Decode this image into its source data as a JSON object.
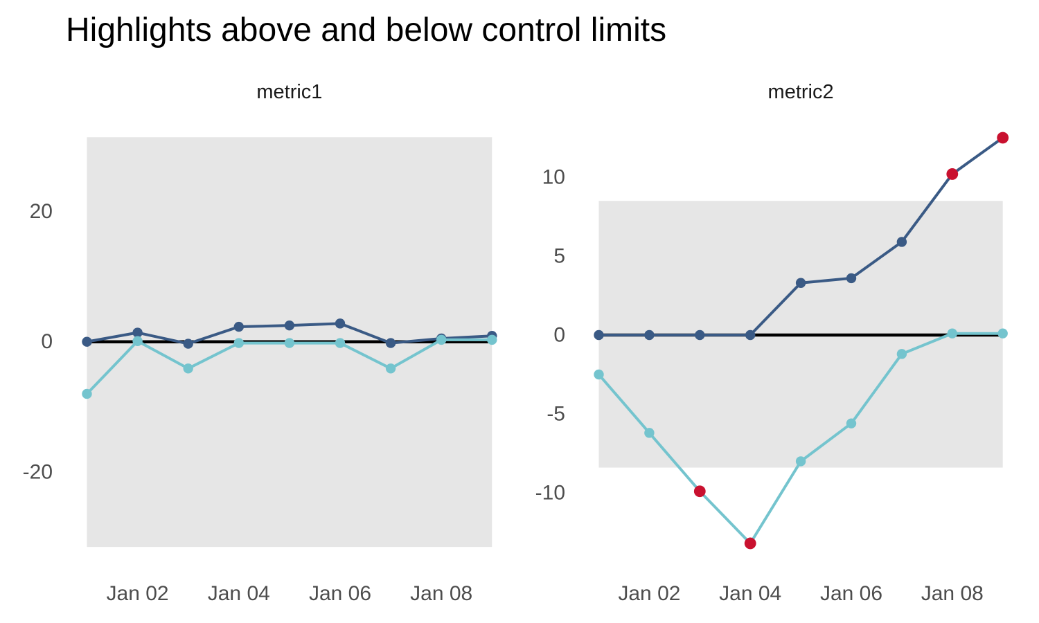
{
  "title": "Highlights above and below control limits",
  "colors": {
    "navy": "#3a5a85",
    "teal": "#74c4ce",
    "red": "#c9112f",
    "band": "#e6e6e6",
    "center_line": "#000000",
    "tick_label": "#4d4d4d",
    "facet_label": "#1a1a1a",
    "title": "#000000",
    "background": "#ffffff"
  },
  "chart_data": [
    {
      "type": "line",
      "facet": "metric1",
      "x": [
        "Jan 01",
        "Jan 02",
        "Jan 03",
        "Jan 04",
        "Jan 05",
        "Jan 06",
        "Jan 07",
        "Jan 08",
        "Jan 09"
      ],
      "series": [
        {
          "name": "metric1-navy",
          "color_key": "navy",
          "values": [
            0,
            1.4,
            -0.3,
            2.3,
            2.5,
            2.8,
            -0.2,
            0.5,
            0.9
          ],
          "out_of_control": []
        },
        {
          "name": "metric1-teal",
          "color_key": "teal",
          "values": [
            -8.0,
            0.1,
            -4.1,
            -0.2,
            -0.2,
            -0.2,
            -4.1,
            0.3,
            0.3
          ],
          "out_of_control": []
        }
      ],
      "center_line": 0,
      "control_limits": {
        "upper": 31.4,
        "lower": -31.5
      },
      "y_ticks": [
        20,
        0,
        -20
      ],
      "x_tick_labels": [
        "Jan 02",
        "Jan 04",
        "Jan 06",
        "Jan 08"
      ],
      "ylim": [
        -31.5,
        31.4
      ],
      "grid": false,
      "legend": "none"
    },
    {
      "type": "line",
      "facet": "metric2",
      "x": [
        "Jan 01",
        "Jan 02",
        "Jan 03",
        "Jan 04",
        "Jan 05",
        "Jan 06",
        "Jan 07",
        "Jan 08",
        "Jan 09"
      ],
      "series": [
        {
          "name": "metric2-navy",
          "color_key": "navy",
          "values": [
            0,
            0,
            0,
            0,
            3.3,
            3.6,
            5.9,
            10.2,
            12.5
          ],
          "out_of_control": [
            7,
            8
          ]
        },
        {
          "name": "metric2-teal",
          "color_key": "teal",
          "values": [
            -2.5,
            -6.2,
            -9.9,
            -13.2,
            -8.0,
            -5.6,
            -1.2,
            0.1,
            0.1
          ],
          "out_of_control": [
            2,
            3
          ]
        }
      ],
      "center_line": 0,
      "control_limits": {
        "upper": 8.5,
        "lower": -8.4
      },
      "y_ticks": [
        10,
        5,
        0,
        -5,
        -10
      ],
      "x_tick_labels": [
        "Jan 02",
        "Jan 04",
        "Jan 06",
        "Jan 08"
      ],
      "ylim": [
        -13.5,
        13
      ],
      "grid": false,
      "legend": "none"
    }
  ]
}
